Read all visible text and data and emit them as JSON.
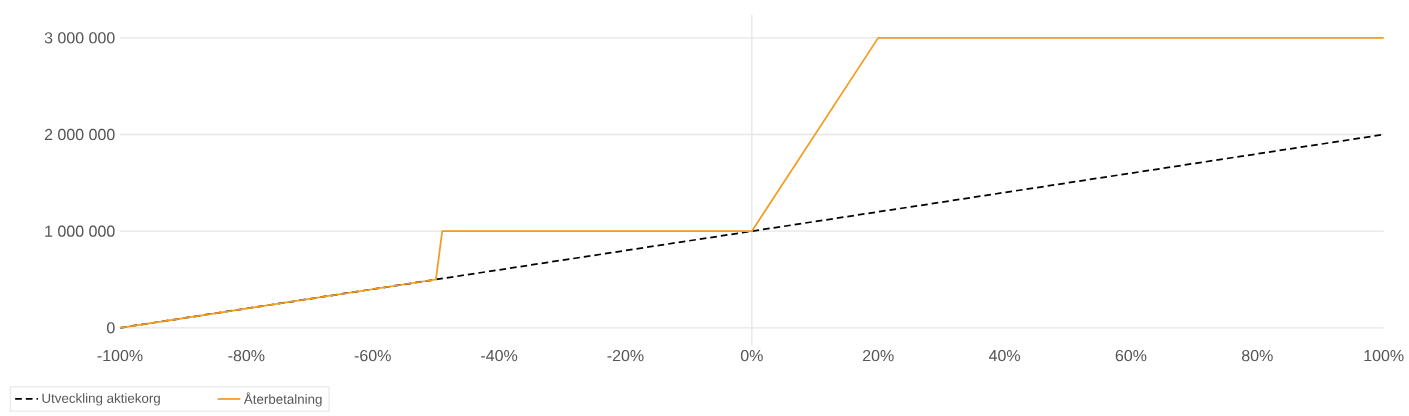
{
  "chart_data": {
    "type": "line",
    "series": [
      {
        "name": "Utveckling aktiekorg",
        "color": "#000000",
        "line_style": "dashed",
        "x": [
          -100,
          100
        ],
        "values": [
          0,
          2000000
        ]
      },
      {
        "name": "Återbetalning",
        "color": "#f39c1f",
        "line_style": "solid",
        "x": [
          -100,
          -50,
          -49,
          0,
          20,
          100
        ],
        "values": [
          0,
          500000,
          1000000,
          1000000,
          3000000,
          3000000
        ]
      }
    ],
    "xlim": [
      -100,
      100
    ],
    "xticks": [
      {
        "value": -100,
        "label": "-100%"
      },
      {
        "value": -80,
        "label": "-80%"
      },
      {
        "value": -60,
        "label": "-60%"
      },
      {
        "value": -40,
        "label": "-40%"
      },
      {
        "value": -20,
        "label": "-20%"
      },
      {
        "value": 0,
        "label": "0%"
      },
      {
        "value": 20,
        "label": "20%"
      },
      {
        "value": 40,
        "label": "40%"
      },
      {
        "value": 60,
        "label": "60%"
      },
      {
        "value": 80,
        "label": "80%"
      },
      {
        "value": 100,
        "label": "100%"
      }
    ],
    "ylim": [
      -180000,
      3240000
    ],
    "yticks": [
      0,
      {
        "value": 1000000,
        "label": "1 000 000"
      },
      {
        "value": 2000000,
        "label": "2 000 000"
      },
      {
        "value": 3000000,
        "label": "3 000 000"
      }
    ],
    "ref_lines": [
      {
        "axis": "x",
        "value": 0,
        "color": "#e6e6e6"
      }
    ],
    "grid": "y",
    "legend": "bottom left",
    "marker": "none"
  }
}
